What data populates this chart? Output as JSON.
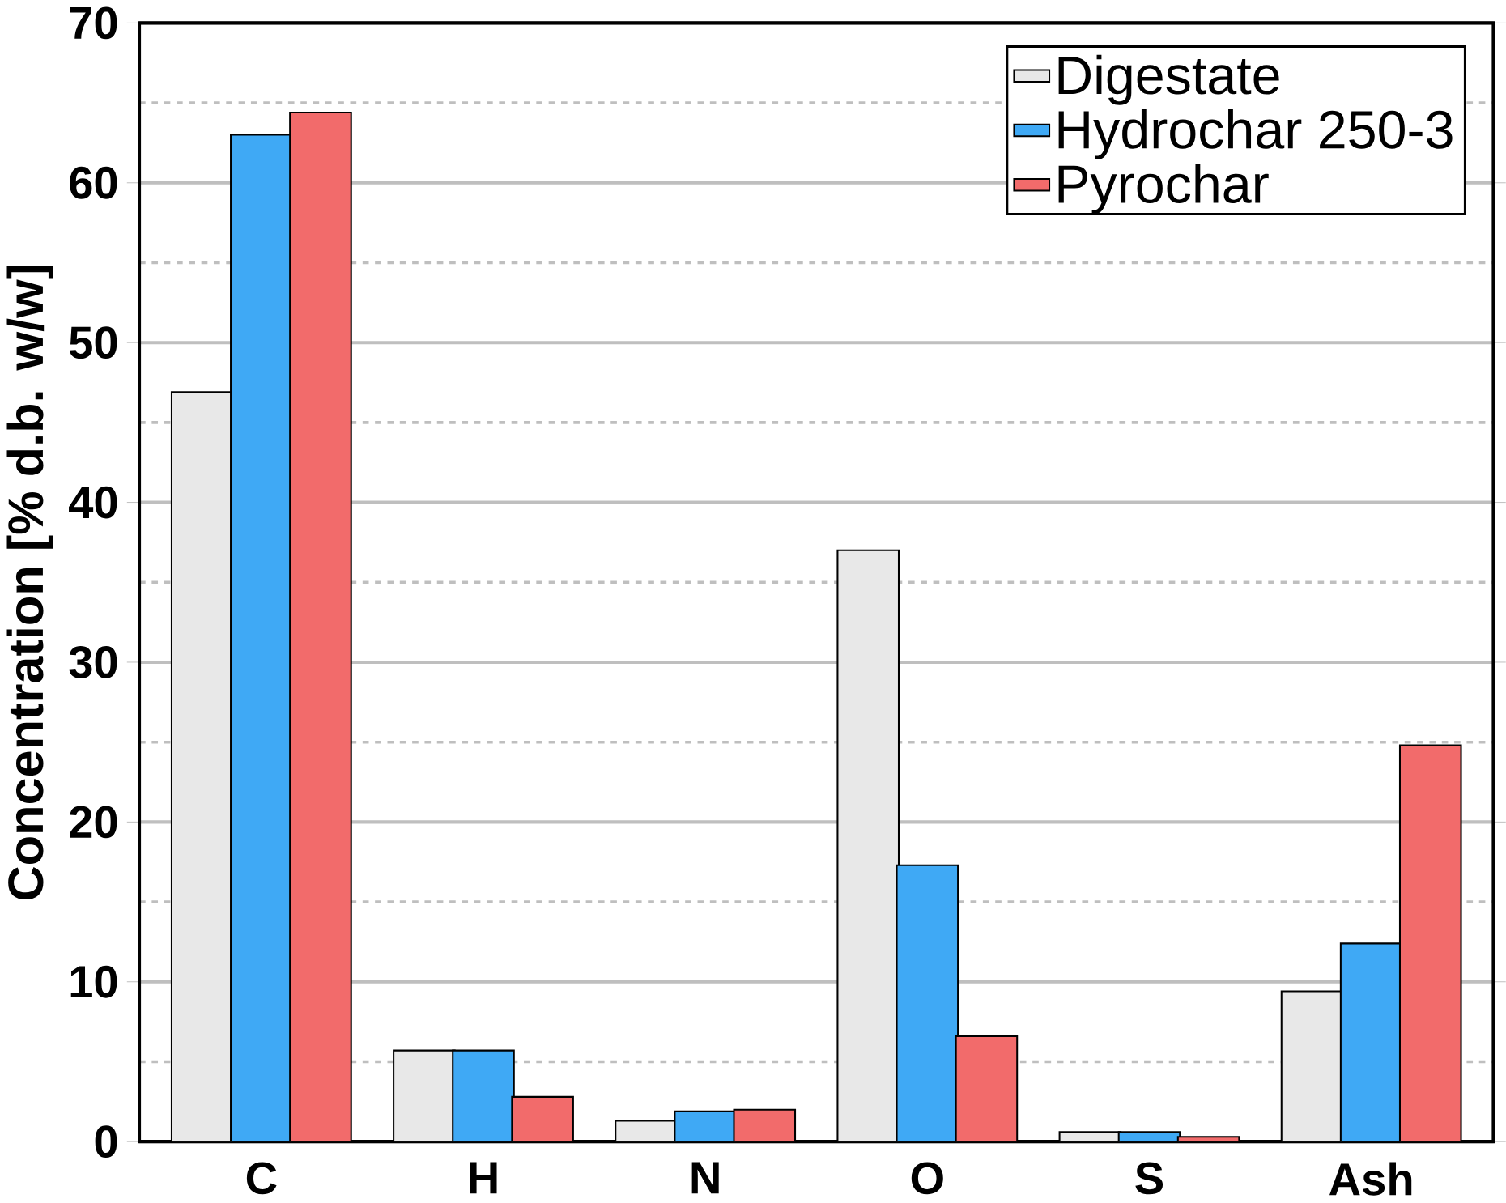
{
  "chart_data": {
    "type": "bar",
    "ylabel": "Concentration [% d.b. w/w]",
    "categories": [
      "C",
      "H",
      "N",
      "O",
      "S",
      "Ash"
    ],
    "series": [
      {
        "name": "Digestate",
        "color": "#e8e8e8",
        "values": [
          46.9,
          5.7,
          1.3,
          37.0,
          0.6,
          9.4
        ]
      },
      {
        "name": "Hydrochar 250-3",
        "color": "#3fa9f5",
        "values": [
          63.0,
          5.7,
          1.9,
          17.3,
          0.6,
          12.4
        ]
      },
      {
        "name": "Pyrochar",
        "color": "#f26b6b",
        "values": [
          64.4,
          2.8,
          2.0,
          6.6,
          0.3,
          24.8
        ]
      }
    ],
    "ylim": [
      0,
      70
    ],
    "yticks": [
      0,
      10,
      20,
      30,
      40,
      50,
      60,
      70
    ],
    "grid": "y",
    "legend": "top right"
  }
}
